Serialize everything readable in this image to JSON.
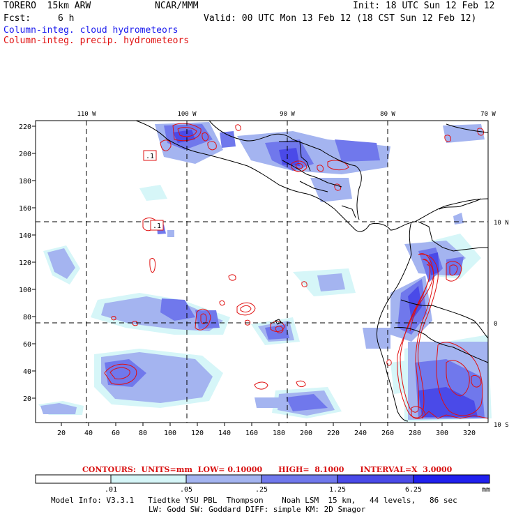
{
  "header": {
    "model": "TORERO  15km ARW",
    "center": "NCAR/MMM",
    "init": "Init: 18 UTC Sun 12 Feb 12",
    "fcst_label": "Fcst:",
    "fcst_value": "6 h",
    "valid": "Valid: 00 UTC Mon 13 Feb 12 (18 CST Sun 12 Feb 12)",
    "line_cloud": "Column-integ. cloud hydrometeors",
    "line_precip": "Column-integ. precip. hydrometeors"
  },
  "map": {
    "lon_labels": [
      "110 W",
      "100 W",
      "90 W",
      "80 W",
      "70 W"
    ],
    "lat_labels": [
      "10 N",
      "0",
      "10 S"
    ],
    "y_ticks": [
      "220",
      "200",
      "180",
      "160",
      "140",
      "120",
      "100",
      "80",
      "60",
      "40",
      "20"
    ],
    "x_ticks": [
      "20",
      "40",
      "60",
      "80",
      "100",
      "120",
      "140",
      "160",
      "180",
      "200",
      "220",
      "240",
      "260",
      "280",
      "300",
      "320"
    ],
    "contour_labels": [
      ".1",
      ".1"
    ]
  },
  "contour_info": "CONTOURS:  UNITS=mm  LOW= 0.10000      HIGH=  8.1000      INTERVAL=X  3.0000",
  "colorbar": {
    "labels": [
      ".01",
      ".05",
      ".25",
      "1.25",
      "6.25"
    ],
    "unit": "mm",
    "colors": [
      "#ffffff",
      "#d6f6f8",
      "#a4b4f0",
      "#7078ec",
      "#4a4ae8",
      "#2020ee"
    ]
  },
  "footer": {
    "line1": "Model Info: V3.3.1   Tiedtke YSU PBL  Thompson    Noah LSM  15 km,   44 levels,   86 sec",
    "line2": "LW: Godd SW: Goddard DIFF: simple KM: 2D Smagor"
  }
}
